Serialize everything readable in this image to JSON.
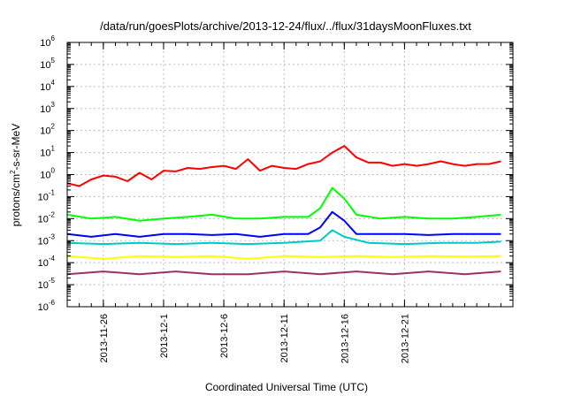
{
  "chart_data": {
    "type": "line",
    "title": "/data/run/goesPlots/archive/2013-12-24/flux/../flux/31daysMoonFluxes.txt",
    "xlabel": "Coordinated Universal Time (UTC)",
    "ylabel": "protons/cm2-s-sr-MeV",
    "yscale": "log",
    "ylim": [
      1e-06,
      1000000.0
    ],
    "xlim": [
      "2013-11-23",
      "2013-12-30"
    ],
    "grid": true,
    "x_ticks": [
      "2013-11-26",
      "2013-12-1",
      "2013-12-6",
      "2013-12-11",
      "2013-12-16",
      "2013-12-21"
    ],
    "y_ticks": [
      {
        "base": "10",
        "exp": "-6"
      },
      {
        "base": "10",
        "exp": "-5"
      },
      {
        "base": "10",
        "exp": "-4"
      },
      {
        "base": "10",
        "exp": "-3"
      },
      {
        "base": "10",
        "exp": "-2"
      },
      {
        "base": "10",
        "exp": "-1"
      },
      {
        "base": "10",
        "exp": "0"
      },
      {
        "base": "10",
        "exp": "1"
      },
      {
        "base": "10",
        "exp": "2"
      },
      {
        "base": "10",
        "exp": "3"
      },
      {
        "base": "10",
        "exp": "4"
      },
      {
        "base": "10",
        "exp": "5"
      },
      {
        "base": "10",
        "exp": "6"
      }
    ],
    "series": [
      {
        "color": "#ff0000",
        "x": [
          "2013-11-23",
          "2013-11-24",
          "2013-11-25",
          "2013-11-26",
          "2013-11-27",
          "2013-11-28",
          "2013-11-29",
          "2013-11-30",
          "2013-12-01",
          "2013-12-02",
          "2013-12-03",
          "2013-12-04",
          "2013-12-05",
          "2013-12-06",
          "2013-12-07",
          "2013-12-08",
          "2013-12-09",
          "2013-12-10",
          "2013-12-11",
          "2013-12-12",
          "2013-12-13",
          "2013-12-14",
          "2013-12-15",
          "2013-12-16",
          "2013-12-17",
          "2013-12-18",
          "2013-12-19",
          "2013-12-20",
          "2013-12-21",
          "2013-12-22",
          "2013-12-23",
          "2013-12-24",
          "2013-12-25",
          "2013-12-26",
          "2013-12-27",
          "2013-12-28",
          "2013-12-29"
        ],
        "y": [
          0.4,
          0.3,
          0.6,
          0.9,
          0.8,
          0.5,
          1.2,
          0.6,
          1.5,
          1.4,
          2.0,
          1.8,
          2.2,
          2.5,
          1.8,
          5.0,
          1.5,
          2.5,
          2.0,
          1.8,
          3.0,
          4.0,
          10,
          20,
          6,
          3.5,
          3.5,
          2.5,
          3.0,
          2.5,
          3.0,
          4.0,
          3.0,
          2.5,
          3.0,
          3.0,
          4.0
        ]
      },
      {
        "color": "#00ff00",
        "x": [
          "2013-11-23",
          "2013-11-25",
          "2013-11-27",
          "2013-11-29",
          "2013-12-01",
          "2013-12-03",
          "2013-12-05",
          "2013-12-07",
          "2013-12-09",
          "2013-12-11",
          "2013-12-13",
          "2013-12-14",
          "2013-12-15",
          "2013-12-16",
          "2013-12-17",
          "2013-12-19",
          "2013-12-21",
          "2013-12-23",
          "2013-12-25",
          "2013-12-27",
          "2013-12-29"
        ],
        "y": [
          0.015,
          0.01,
          0.012,
          0.008,
          0.01,
          0.012,
          0.015,
          0.01,
          0.01,
          0.012,
          0.012,
          0.03,
          0.25,
          0.08,
          0.015,
          0.01,
          0.012,
          0.01,
          0.01,
          0.012,
          0.015
        ]
      },
      {
        "color": "#0000ff",
        "x": [
          "2013-11-23",
          "2013-11-25",
          "2013-11-27",
          "2013-11-29",
          "2013-12-01",
          "2013-12-03",
          "2013-12-05",
          "2013-12-07",
          "2013-12-09",
          "2013-12-11",
          "2013-12-13",
          "2013-12-14",
          "2013-12-15",
          "2013-12-16",
          "2013-12-17",
          "2013-12-19",
          "2013-12-21",
          "2013-12-23",
          "2013-12-25",
          "2013-12-27",
          "2013-12-29"
        ],
        "y": [
          0.002,
          0.0015,
          0.002,
          0.0015,
          0.002,
          0.002,
          0.0018,
          0.002,
          0.0015,
          0.002,
          0.002,
          0.004,
          0.02,
          0.008,
          0.002,
          0.002,
          0.002,
          0.0018,
          0.002,
          0.002,
          0.002
        ]
      },
      {
        "color": "#00c8c8",
        "x": [
          "2013-11-23",
          "2013-11-26",
          "2013-11-29",
          "2013-12-02",
          "2013-12-05",
          "2013-12-08",
          "2013-12-11",
          "2013-12-14",
          "2013-12-15",
          "2013-12-16",
          "2013-12-18",
          "2013-12-21",
          "2013-12-24",
          "2013-12-27",
          "2013-12-29"
        ],
        "y": [
          0.0008,
          0.0007,
          0.0008,
          0.0007,
          0.0008,
          0.0007,
          0.0008,
          0.001,
          0.003,
          0.0015,
          0.0008,
          0.0007,
          0.0008,
          0.0008,
          0.0009
        ]
      },
      {
        "color": "#ffff00",
        "x": [
          "2013-11-23",
          "2013-11-26",
          "2013-11-29",
          "2013-12-02",
          "2013-12-05",
          "2013-12-08",
          "2013-12-11",
          "2013-12-14",
          "2013-12-17",
          "2013-12-20",
          "2013-12-23",
          "2013-12-26",
          "2013-12-29"
        ],
        "y": [
          0.0002,
          0.00015,
          0.0002,
          0.00018,
          0.0002,
          0.00015,
          0.0002,
          0.00018,
          0.0002,
          0.00018,
          0.0002,
          0.00019,
          0.0002
        ]
      },
      {
        "color": "#993366",
        "x": [
          "2013-11-23",
          "2013-11-26",
          "2013-11-29",
          "2013-12-02",
          "2013-12-05",
          "2013-12-08",
          "2013-12-11",
          "2013-12-14",
          "2013-12-17",
          "2013-12-20",
          "2013-12-23",
          "2013-12-26",
          "2013-12-29"
        ],
        "y": [
          3e-05,
          4e-05,
          3e-05,
          4e-05,
          3e-05,
          3e-05,
          4e-05,
          3e-05,
          4e-05,
          3e-05,
          4e-05,
          3e-05,
          4e-05
        ]
      }
    ]
  }
}
